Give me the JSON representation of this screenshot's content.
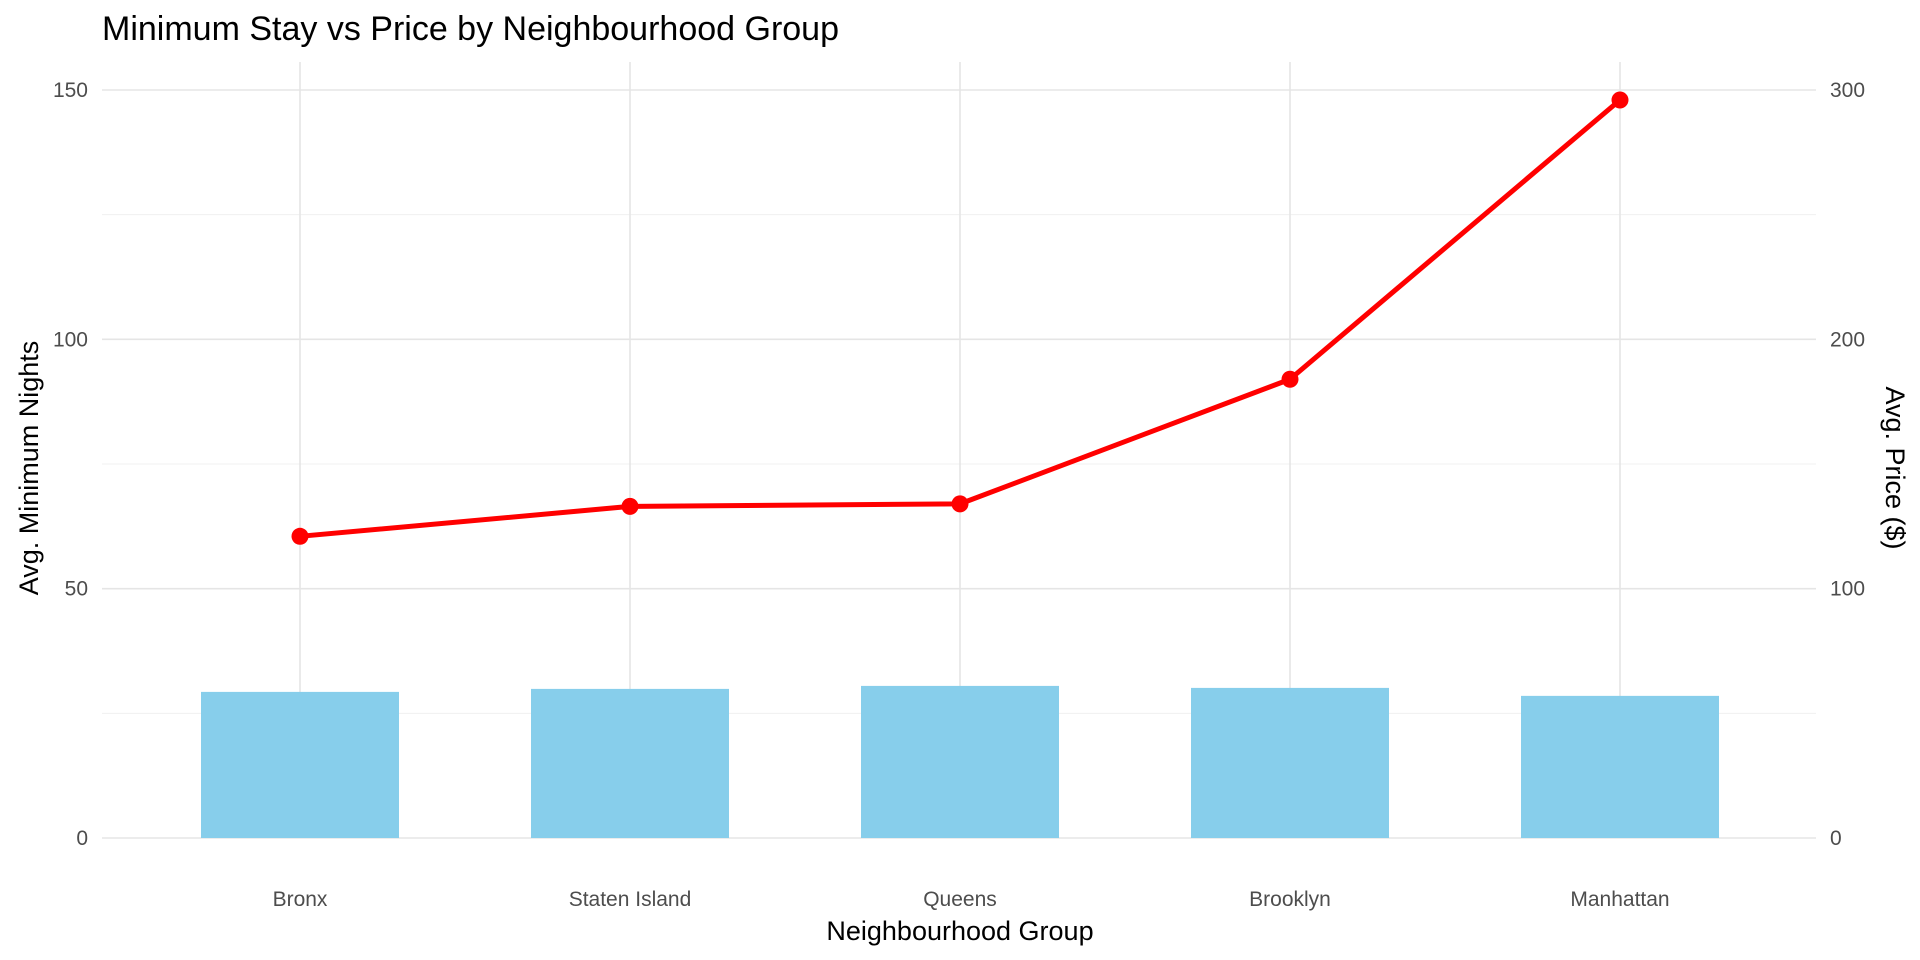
{
  "chart_data": {
    "type": "bar+line",
    "title": "Minimum Stay vs Price by Neighbourhood Group",
    "xlabel": "Neighbourhood Group",
    "ylabel": "Avg. Minimum Nights",
    "y2label": "Avg. Price ($)",
    "categories": [
      "Bronx",
      "Staten Island",
      "Queens",
      "Brooklyn",
      "Manhattan"
    ],
    "ylim": [
      0,
      150
    ],
    "y2lim": [
      0,
      300
    ],
    "yticks": [
      "0",
      "50",
      "100",
      "150"
    ],
    "y2ticks": [
      "0",
      "100",
      "200",
      "300"
    ],
    "series": [
      {
        "kind": "bar",
        "axis": "left",
        "values": [
          29.3,
          29.9,
          30.5,
          30.1,
          28.5
        ]
      },
      {
        "kind": "line",
        "axis": "right",
        "values": [
          121,
          133,
          134,
          184,
          296
        ]
      }
    ],
    "colors": {
      "bar": "#87CEEB",
      "line": "#FF0000"
    },
    "grid": true,
    "legend": "none"
  }
}
